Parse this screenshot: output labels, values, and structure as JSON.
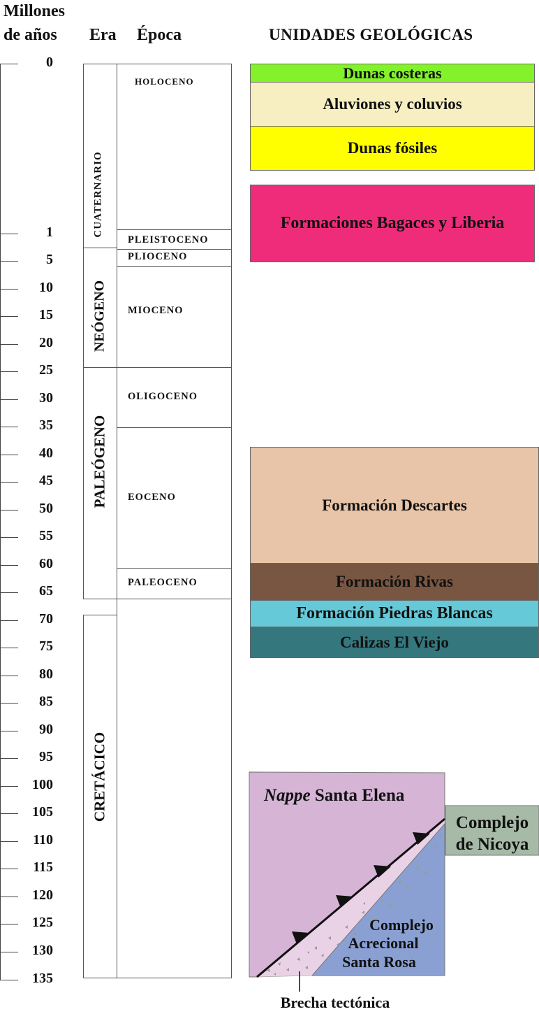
{
  "headers": {
    "millones_line1": "Millones",
    "millones_line2": "de años",
    "era": "Era",
    "epoca": "Época",
    "unidades": "UNIDADES GEOLÓGICAS"
  },
  "ticks": [
    "0",
    "1",
    "5",
    "10",
    "15",
    "20",
    "25",
    "30",
    "35",
    "40",
    "45",
    "50",
    "55",
    "60",
    "65",
    "70",
    "75",
    "80",
    "85",
    "90",
    "95",
    "100",
    "105",
    "110",
    "115",
    "120",
    "125",
    "130",
    "135"
  ],
  "eras": [
    "CUATERNARIO",
    "NEÓGENO",
    "PALEÓGENO",
    "CRETÁCICO"
  ],
  "epochs": [
    "HOLOCENO",
    "PLEISTOCENO",
    "PLIOCENO",
    "MIOCENO",
    "OLIGOCENO",
    "EOCENO",
    "PALEOCENO"
  ],
  "units": [
    {
      "name": "Dunas costeras",
      "color": "#84f22b"
    },
    {
      "name": "Aluviones y coluvios",
      "color": "#f7efc2"
    },
    {
      "name": "Dunas fósiles",
      "color": "#ffff00"
    },
    {
      "name": "Formaciones Bagaces y Liberia",
      "color": "#ee2c7a"
    },
    {
      "name": "Formación Descartes",
      "color": "#e8c5a9"
    },
    {
      "name": "Formación Rivas",
      "color": "#795641"
    },
    {
      "name": "Formación Piedras Blancas",
      "color": "#66c9d8"
    },
    {
      "name": "Calizas El Viejo",
      "color": "#34787e"
    }
  ],
  "nappe": {
    "title_italic": "Nappe",
    "title_rest": " Santa Elena",
    "color": "#d6b4d6"
  },
  "nicoya": {
    "line1": "Complejo",
    "line2": "de Nicoya",
    "color": "#a7baa7"
  },
  "santa_rosa": {
    "line1": "Complejo",
    "line2": "Acrecional",
    "line3": "Santa Rosa",
    "color": "#8aa0d2"
  },
  "brecha": {
    "label": "Brecha tectónica",
    "color": "#ead2e6"
  }
}
